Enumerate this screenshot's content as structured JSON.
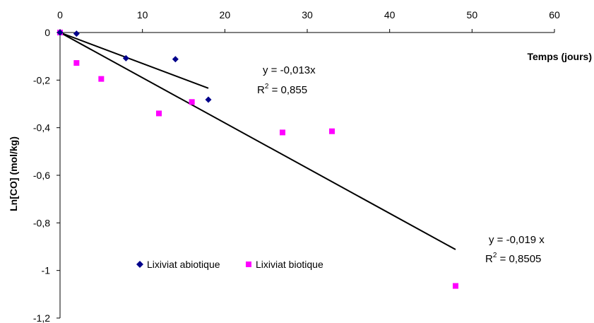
{
  "chart_data": {
    "type": "scatter",
    "title": "",
    "xlabel": "Temps (jours)",
    "ylabel": "Ln[CO] (mol/kg)",
    "xlim": [
      0,
      60
    ],
    "ylim": [
      -1.2,
      0
    ],
    "x_ticks": [
      0,
      10,
      20,
      30,
      40,
      50,
      60
    ],
    "x_tick_labels": [
      "0",
      "10",
      "20",
      "30",
      "40",
      "50",
      "60"
    ],
    "y_ticks": [
      0,
      -0.2,
      -0.4,
      -0.6,
      -0.8,
      -1,
      -1.2
    ],
    "y_tick_labels": [
      "0",
      "-0,2",
      "-0,4",
      "-0,6",
      "-0,8",
      "-1",
      "-1,2"
    ],
    "x_axis_position": "top",
    "grid": false,
    "legend_position": "bottom-left",
    "series": [
      {
        "name": "Lixiviat abiotique",
        "marker": "diamond",
        "color": "#00008B",
        "points": [
          [
            0,
            0
          ],
          [
            2,
            -0.005
          ],
          [
            8,
            -0.108
          ],
          [
            14,
            -0.112
          ],
          [
            18,
            -0.282
          ]
        ]
      },
      {
        "name": "Lixiviat biotique",
        "marker": "square",
        "color": "#FF00FF",
        "points": [
          [
            0,
            0
          ],
          [
            2,
            -0.128
          ],
          [
            5,
            -0.195
          ],
          [
            12,
            -0.34
          ],
          [
            16,
            -0.292
          ],
          [
            27,
            -0.42
          ],
          [
            33,
            -0.415
          ],
          [
            48,
            -1.065
          ]
        ]
      }
    ],
    "trendlines": [
      {
        "series": "Lixiviat abiotique",
        "slope": -0.013,
        "x_range": [
          0,
          18
        ],
        "equation": "y = -0,013x",
        "r2_prefix": "R",
        "r2_value": " = 0,855"
      },
      {
        "series": "Lixiviat biotique",
        "slope": -0.019,
        "x_range": [
          0,
          48
        ],
        "equation": "y = -0,019 x",
        "r2_prefix": "R",
        "r2_value": " = 0,8505"
      }
    ]
  }
}
